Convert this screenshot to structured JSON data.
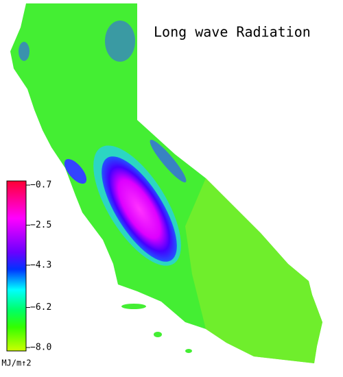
{
  "title": "Long wave Radiation",
  "colorbar": {
    "lim": [
      -8.0,
      -0.7
    ],
    "ticks": [
      {
        "value": -0.7,
        "label": "−0.7"
      },
      {
        "value": -2.5,
        "label": "−2.5"
      },
      {
        "value": -4.3,
        "label": "−4.3"
      },
      {
        "value": -6.2,
        "label": "−6.2"
      },
      {
        "value": -8.0,
        "label": "−8.0"
      }
    ],
    "unit": "MJ/m↑2"
  }
}
